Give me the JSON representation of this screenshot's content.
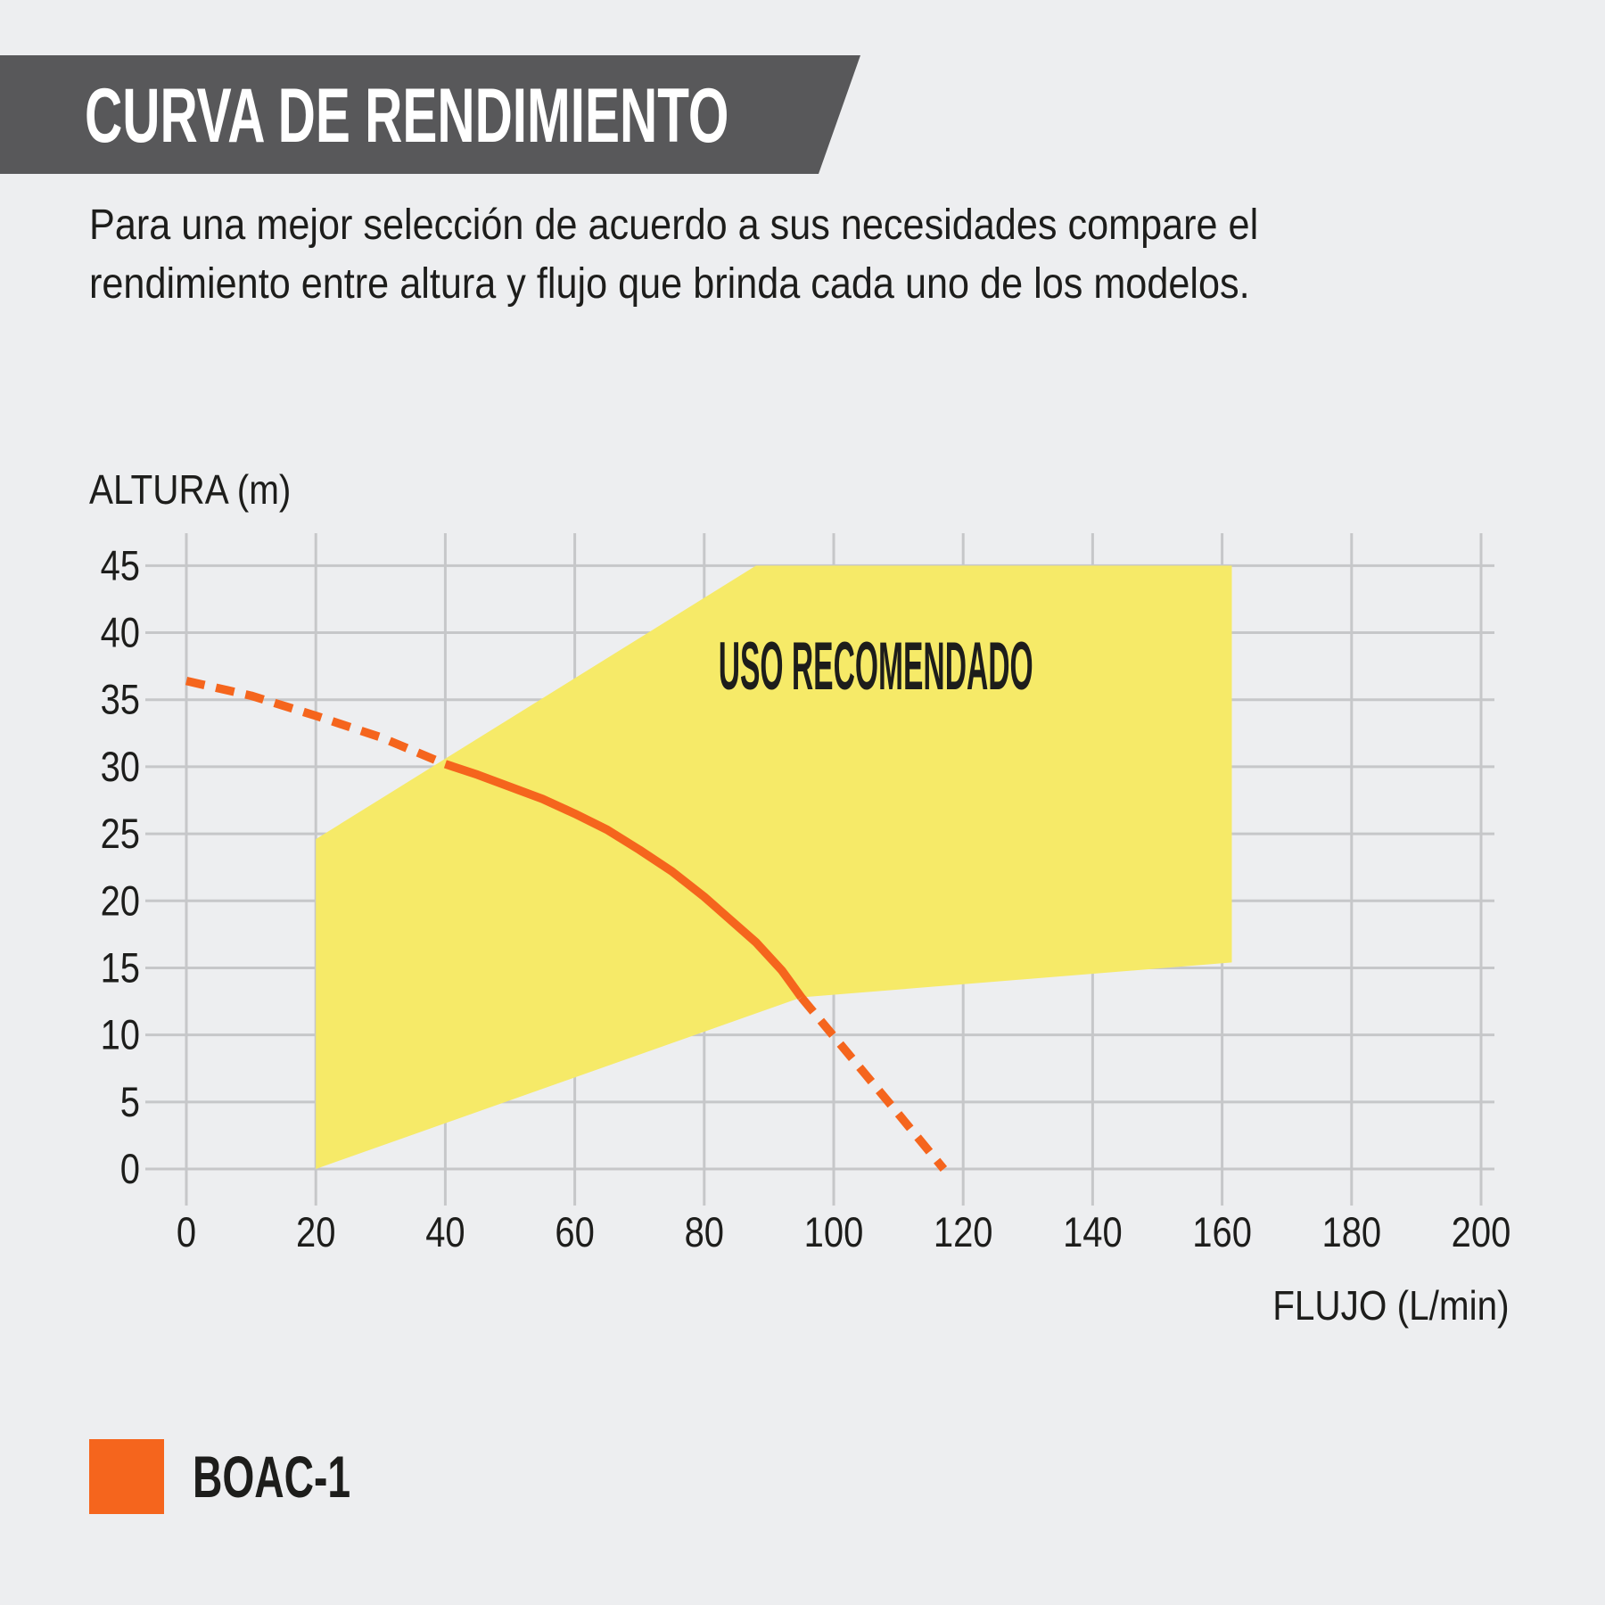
{
  "page": {
    "background": "#edeef0"
  },
  "header": {
    "title": "CURVA DE RENDIMIENTO",
    "banner_color": "#58585a",
    "title_color": "#ffffff"
  },
  "description": {
    "line1": "Para una mejor selección de acuerdo a sus necesidades compare el",
    "line2": "rendimiento entre altura y flujo que brinda cada uno de los modelos."
  },
  "legend": {
    "swatch_color": "#f5651d",
    "label": "BOAC-1"
  },
  "chart_data": {
    "type": "line",
    "title": "",
    "xlabel": "FLUJO (L/min)",
    "ylabel": "ALTURA (m)",
    "xlim": [
      0,
      200
    ],
    "ylim": [
      0,
      45
    ],
    "x_ticks": [
      0,
      20,
      40,
      60,
      80,
      100,
      120,
      140,
      160,
      180,
      200
    ],
    "y_ticks": [
      0,
      5,
      10,
      15,
      20,
      25,
      30,
      35,
      40,
      45
    ],
    "grid": true,
    "grid_color": "#c6c7c9",
    "region_label": "USO RECOMENDADO",
    "region_label_anchor": {
      "x": 106.5,
      "y": 37.5
    },
    "recommended_region": {
      "color": "#f6ea68",
      "points": [
        [
          20,
          0
        ],
        [
          20,
          24.6
        ],
        [
          88,
          45
        ],
        [
          161.5,
          45
        ],
        [
          161.5,
          15.4
        ],
        [
          95,
          12.8
        ]
      ]
    },
    "series": [
      {
        "name": "BOAC-1",
        "color": "#f5651d",
        "segments": [
          {
            "style": "dashed",
            "points": [
              [
                0,
                36.4
              ],
              [
                10,
                35.3
              ],
              [
                20,
                33.8
              ],
              [
                30,
                32.2
              ],
              [
                40,
                30.2
              ]
            ]
          },
          {
            "style": "solid",
            "points": [
              [
                40,
                30.2
              ],
              [
                45,
                29.4
              ],
              [
                50,
                28.5
              ],
              [
                55,
                27.6
              ],
              [
                60,
                26.5
              ],
              [
                65,
                25.3
              ],
              [
                70,
                23.8
              ],
              [
                75,
                22.2
              ],
              [
                80,
                20.3
              ],
              [
                84,
                18.6
              ],
              [
                88,
                16.9
              ],
              [
                92,
                14.8
              ],
              [
                95,
                12.8
              ]
            ]
          },
          {
            "style": "dashed",
            "points": [
              [
                95,
                12.8
              ],
              [
                100,
                9.9
              ],
              [
                105,
                7.0
              ],
              [
                110,
                4.1
              ],
              [
                117,
                0
              ]
            ]
          }
        ]
      }
    ]
  }
}
